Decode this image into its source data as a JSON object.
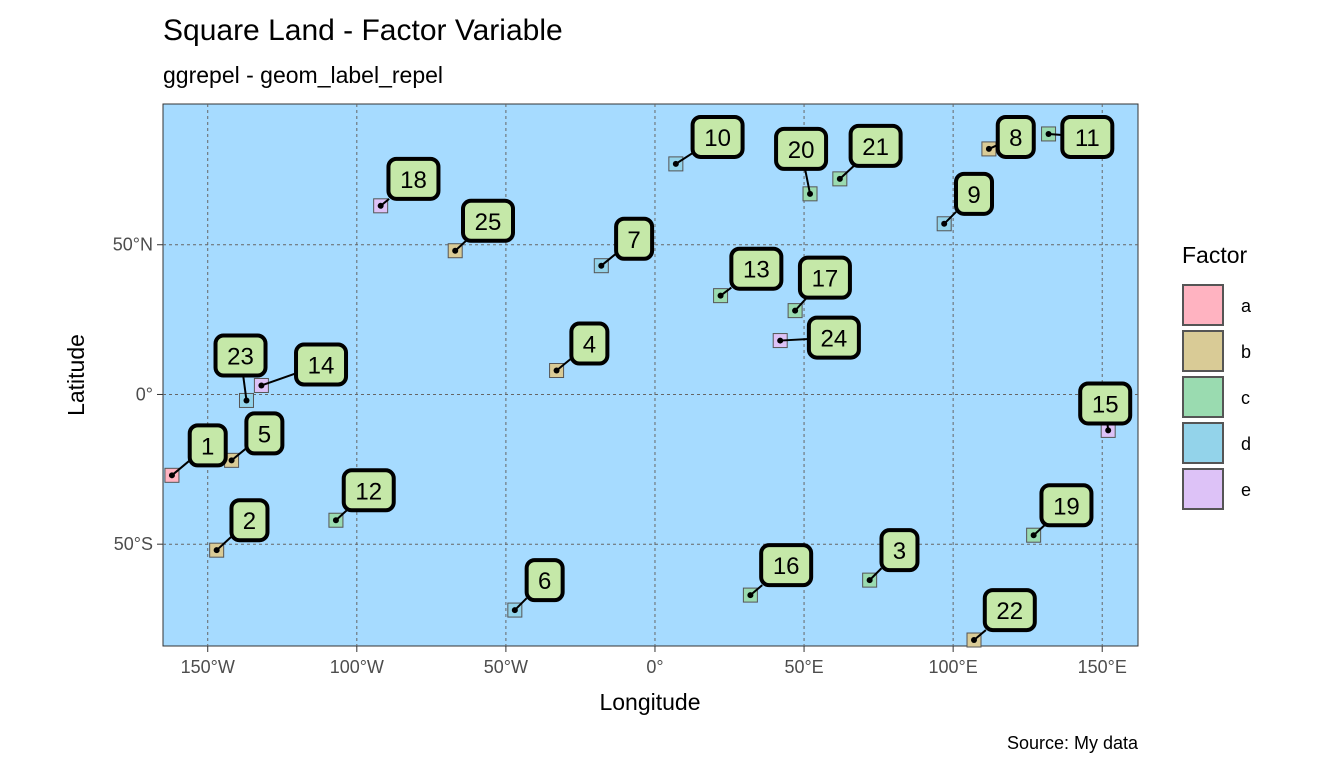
{
  "chart_data": {
    "type": "scatter",
    "title": "Square Land - Factor Variable",
    "subtitle": "ggrepel - geom_label_repel",
    "xlabel": "Longitude",
    "ylabel": "Latitude",
    "caption": "Source: My data",
    "xlim": [
      -165,
      162
    ],
    "ylim": [
      -84,
      97
    ],
    "xticks": [
      {
        "value": -150,
        "label": "150°W"
      },
      {
        "value": -100,
        "label": "100°W"
      },
      {
        "value": -50,
        "label": "50°W"
      },
      {
        "value": 0,
        "label": "0°"
      },
      {
        "value": 50,
        "label": "50°E"
      },
      {
        "value": 100,
        "label": "100°E"
      },
      {
        "value": 150,
        "label": "150°E"
      }
    ],
    "yticks": [
      {
        "value": 50,
        "label": "50°N"
      },
      {
        "value": 0,
        "label": "0°"
      },
      {
        "value": -50,
        "label": "50°S"
      }
    ],
    "grid": true,
    "legend": {
      "title": "Factor",
      "position": "right",
      "entries": [
        {
          "key": "a",
          "label": "a",
          "color": "#FFB3C1"
        },
        {
          "key": "b",
          "label": "b",
          "color": "#D9CB96"
        },
        {
          "key": "c",
          "label": "c",
          "color": "#9ADBB0"
        },
        {
          "key": "d",
          "label": "d",
          "color": "#93D3EA"
        },
        {
          "key": "e",
          "label": "e",
          "color": "#DDC2F7"
        }
      ]
    },
    "colors": {
      "panel": "#A6DBFF",
      "label_fill": "#C5E8A8",
      "label_border": "#000000",
      "grid": "#666666",
      "marker_border": "#555555"
    },
    "points": [
      {
        "id": "1",
        "x": -162,
        "y": -27,
        "factor": "a",
        "lx": -150,
        "ly": -17
      },
      {
        "id": "2",
        "x": -147,
        "y": -52,
        "factor": "b",
        "lx": -136,
        "ly": -42
      },
      {
        "id": "3",
        "x": 72,
        "y": -62,
        "factor": "c",
        "lx": 82,
        "ly": -52
      },
      {
        "id": "4",
        "x": -33,
        "y": 8,
        "factor": "b",
        "lx": -22,
        "ly": 17
      },
      {
        "id": "5",
        "x": -142,
        "y": -22,
        "factor": "b",
        "lx": -131,
        "ly": -13
      },
      {
        "id": "6",
        "x": -47,
        "y": -72,
        "factor": "d",
        "lx": -37,
        "ly": -62
      },
      {
        "id": "7",
        "x": -18,
        "y": 43,
        "factor": "d",
        "lx": -7,
        "ly": 52
      },
      {
        "id": "8",
        "x": 112,
        "y": 82,
        "factor": "b",
        "lx": 121,
        "ly": 86
      },
      {
        "id": "9",
        "x": 97,
        "y": 57,
        "factor": "d",
        "lx": 107,
        "ly": 67
      },
      {
        "id": "10",
        "x": 7,
        "y": 77,
        "factor": "d",
        "lx": 21,
        "ly": 86
      },
      {
        "id": "11",
        "x": 132,
        "y": 87,
        "factor": "c",
        "lx": 145,
        "ly": 86
      },
      {
        "id": "12",
        "x": -107,
        "y": -42,
        "factor": "c",
        "lx": -96,
        "ly": -32
      },
      {
        "id": "13",
        "x": 22,
        "y": 33,
        "factor": "c",
        "lx": 34,
        "ly": 42
      },
      {
        "id": "14",
        "x": -132,
        "y": 3,
        "factor": "e",
        "lx": -112,
        "ly": 10
      },
      {
        "id": "15",
        "x": 152,
        "y": -12,
        "factor": "e",
        "lx": 151,
        "ly": -3
      },
      {
        "id": "16",
        "x": 32,
        "y": -67,
        "factor": "c",
        "lx": 44,
        "ly": -57
      },
      {
        "id": "17",
        "x": 47,
        "y": 28,
        "factor": "c",
        "lx": 57,
        "ly": 39
      },
      {
        "id": "18",
        "x": -92,
        "y": 63,
        "factor": "e",
        "lx": -81,
        "ly": 72
      },
      {
        "id": "19",
        "x": 127,
        "y": -47,
        "factor": "c",
        "lx": 138,
        "ly": -37
      },
      {
        "id": "20",
        "x": 52,
        "y": 67,
        "factor": "c",
        "lx": 49,
        "ly": 82
      },
      {
        "id": "21",
        "x": 62,
        "y": 72,
        "factor": "c",
        "lx": 74,
        "ly": 83
      },
      {
        "id": "22",
        "x": 107,
        "y": -82,
        "factor": "b",
        "lx": 119,
        "ly": -72
      },
      {
        "id": "23",
        "x": -137,
        "y": -2,
        "factor": "d",
        "lx": -139,
        "ly": 13
      },
      {
        "id": "24",
        "x": 42,
        "y": 18,
        "factor": "e",
        "lx": 60,
        "ly": 19
      },
      {
        "id": "25",
        "x": -67,
        "y": 48,
        "factor": "b",
        "lx": -56,
        "ly": 58
      }
    ]
  }
}
